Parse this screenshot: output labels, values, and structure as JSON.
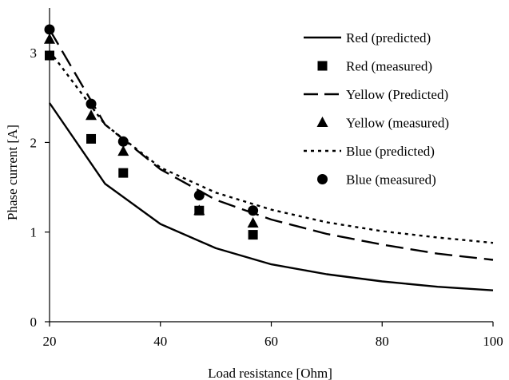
{
  "chart_data": {
    "type": "line",
    "title": "",
    "xlabel": "Load resistance [Ohm]",
    "ylabel": "Phase current [A]",
    "xlim": [
      20,
      100
    ],
    "ylim": [
      0,
      3.5
    ],
    "xticks": [
      20,
      40,
      60,
      80,
      100
    ],
    "yticks": [
      0,
      1,
      2,
      3
    ],
    "grid": false,
    "legend_position": "top-right",
    "series": [
      {
        "name": "Red (predicted)",
        "kind": "line",
        "dash": "solid",
        "marker": "none",
        "color": "#000000",
        "x": [
          20,
          30,
          40,
          50,
          60,
          70,
          80,
          90,
          100
        ],
        "y": [
          2.44,
          1.54,
          1.09,
          0.82,
          0.64,
          0.53,
          0.45,
          0.39,
          0.35
        ]
      },
      {
        "name": "Red (measured)",
        "kind": "scatter",
        "marker": "square",
        "color": "#000000",
        "x": [
          20,
          27.5,
          33.3,
          47,
          56.7
        ],
        "y": [
          2.97,
          2.04,
          1.66,
          1.24,
          0.97
        ]
      },
      {
        "name": "Yellow (Predicted)",
        "kind": "line",
        "dash": "long-dash",
        "marker": "none",
        "color": "#000000",
        "x": [
          20,
          30,
          40,
          50,
          60,
          70,
          80,
          90,
          100
        ],
        "y": [
          3.26,
          2.2,
          1.7,
          1.36,
          1.14,
          0.98,
          0.86,
          0.76,
          0.69
        ]
      },
      {
        "name": "Yellow (measured)",
        "kind": "scatter",
        "marker": "triangle",
        "color": "#000000",
        "x": [
          20,
          27.5,
          33.3,
          47,
          56.7
        ],
        "y": [
          3.15,
          2.3,
          1.9,
          1.24,
          1.1
        ]
      },
      {
        "name": "Blue (predicted)",
        "kind": "line",
        "dash": "dotted",
        "marker": "none",
        "color": "#000000",
        "x": [
          20,
          30,
          40,
          50,
          60,
          70,
          80,
          90,
          100
        ],
        "y": [
          3.02,
          2.2,
          1.72,
          1.44,
          1.25,
          1.11,
          1.01,
          0.94,
          0.88
        ]
      },
      {
        "name": "Blue (measured)",
        "kind": "scatter",
        "marker": "circle",
        "color": "#000000",
        "x": [
          20,
          27.5,
          33.3,
          47,
          56.7
        ],
        "y": [
          3.26,
          2.43,
          2.01,
          1.41,
          1.24
        ]
      }
    ]
  }
}
